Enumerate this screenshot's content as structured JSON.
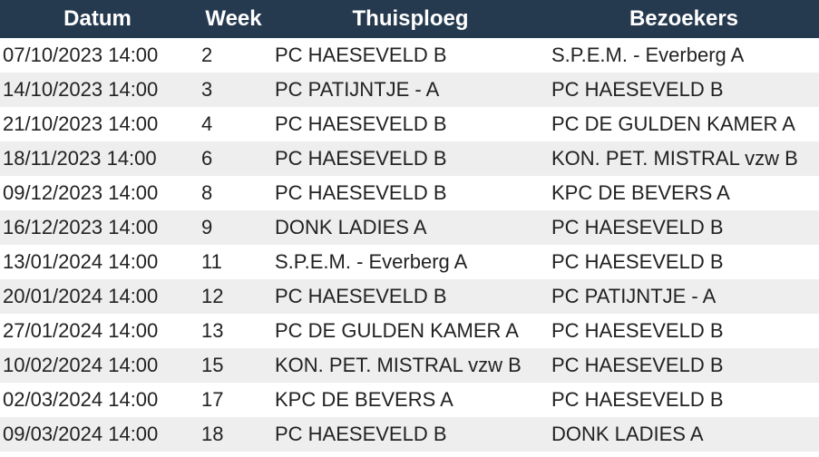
{
  "table": {
    "headers": {
      "datum": "Datum",
      "week": "Week",
      "thuisploeg": "Thuisploeg",
      "bezoekers": "Bezoekers"
    },
    "rows": [
      {
        "datum": "07/10/2023 14:00",
        "week": "2",
        "thuisploeg": "PC HAESEVELD B",
        "bezoekers": "S.P.E.M. - Everberg A"
      },
      {
        "datum": "14/10/2023 14:00",
        "week": "3",
        "thuisploeg": "PC PATIJNTJE -  A",
        "bezoekers": "PC HAESEVELD B"
      },
      {
        "datum": "21/10/2023 14:00",
        "week": "4",
        "thuisploeg": "PC HAESEVELD B",
        "bezoekers": "PC DE GULDEN KAMER A"
      },
      {
        "datum": "18/11/2023 14:00",
        "week": "6",
        "thuisploeg": "PC HAESEVELD B",
        "bezoekers": "KON. PET. MISTRAL vzw B"
      },
      {
        "datum": "09/12/2023 14:00",
        "week": "8",
        "thuisploeg": "PC HAESEVELD B",
        "bezoekers": "KPC DE BEVERS A"
      },
      {
        "datum": "16/12/2023 14:00",
        "week": "9",
        "thuisploeg": "DONK LADIES A",
        "bezoekers": "PC HAESEVELD B"
      },
      {
        "datum": "13/01/2024 14:00",
        "week": "11",
        "thuisploeg": "S.P.E.M. - Everberg A",
        "bezoekers": "PC HAESEVELD B"
      },
      {
        "datum": "20/01/2024 14:00",
        "week": "12",
        "thuisploeg": "PC HAESEVELD B",
        "bezoekers": "PC PATIJNTJE -  A"
      },
      {
        "datum": "27/01/2024 14:00",
        "week": "13",
        "thuisploeg": "PC DE GULDEN KAMER A",
        "bezoekers": "PC HAESEVELD B"
      },
      {
        "datum": "10/02/2024 14:00",
        "week": "15",
        "thuisploeg": "KON. PET. MISTRAL vzw B",
        "bezoekers": "PC HAESEVELD B"
      },
      {
        "datum": "02/03/2024 14:00",
        "week": "17",
        "thuisploeg": "KPC DE BEVERS A",
        "bezoekers": "PC HAESEVELD B"
      },
      {
        "datum": "09/03/2024 14:00",
        "week": "18",
        "thuisploeg": "PC HAESEVELD B",
        "bezoekers": "DONK LADIES A"
      }
    ]
  },
  "colors": {
    "header_bg": "#263a4f",
    "header_text": "#ffffff",
    "row_alt_bg": "#eeeeee",
    "row_bg": "#ffffff",
    "body_text": "#222222"
  }
}
